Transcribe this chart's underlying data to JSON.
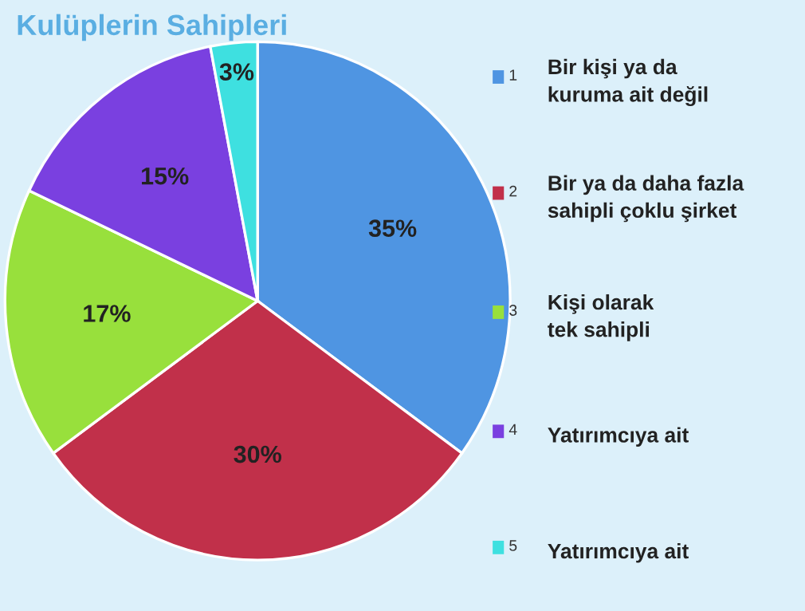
{
  "chart_data": {
    "type": "pie",
    "title": "Kulüplerin Sahipleri",
    "categories": [
      "1",
      "2",
      "3",
      "4",
      "5"
    ],
    "values": [
      35,
      30,
      17,
      15,
      3
    ],
    "value_labels": [
      "35%",
      "30%",
      "17%",
      "15%",
      "3%"
    ],
    "colors": [
      "#4f95e2",
      "#c1304a",
      "#98e03c",
      "#7a40e0",
      "#3ee0e0"
    ],
    "annotations": [
      "Bir kişi ya da\nkuruma ait değil",
      "Bir ya da daha fazla\nsahipli çoklu şirket",
      "Kişi olarak\ntek sahipli",
      "Yatırımcıya ait",
      "Yatırımcıya ait"
    ],
    "legend": "right"
  }
}
